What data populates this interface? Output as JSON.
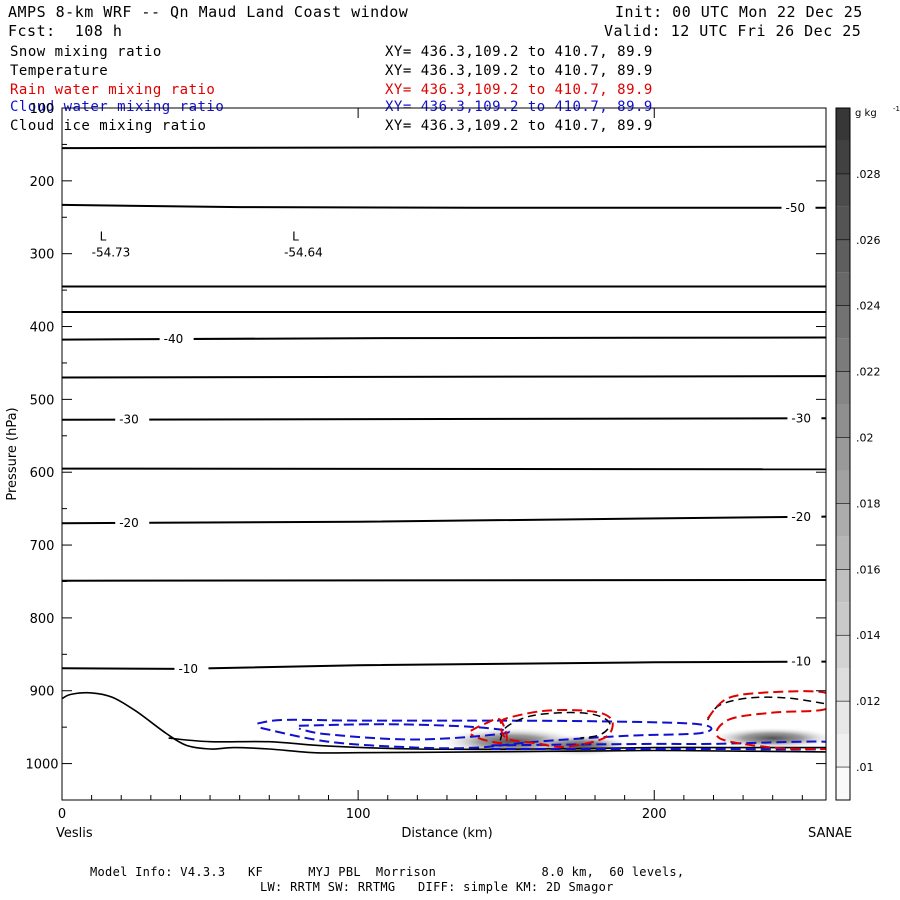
{
  "header": {
    "title": "AMPS 8-km WRF -- Qn Maud Land Coast window",
    "init": "Init: 00 UTC Mon 22 Dec 25",
    "fcst": "Fcst:  108 h",
    "valid": "Valid: 12 UTC Fri 26 Dec 25"
  },
  "fields": [
    {
      "name": "Snow mixing ratio",
      "xy": "XY= 436.3,109.2 to 410.7, 89.9",
      "color": "#000000"
    },
    {
      "name": "Temperature",
      "xy": "XY= 436.3,109.2 to 410.7, 89.9",
      "color": "#000000"
    },
    {
      "name": "Rain water mixing ratio",
      "xy": "XY= 436.3,109.2 to 410.7, 89.9",
      "color": "#e00000"
    },
    {
      "name": "Cloud water mixing ratio",
      "xy": "XY= 436.3,109.2 to 410.7, 89.9",
      "color": "#1010d0"
    },
    {
      "name": "Cloud ice mixing ratio",
      "xy": "XY= 436.3,109.2 to 410.7, 89.9",
      "color": "#000000"
    }
  ],
  "footer": {
    "line1": "Model Info: V4.3.3   KF      MYJ PBL  Morrison              8.0 km,  60 levels,",
    "line2": "LW: RRTM SW: RRTMG   DIFF: simple KM: 2D Smagor"
  },
  "chart_data": {
    "type": "contour",
    "title": "AMPS 8-km WRF -- Qn Maud Land Coast window",
    "xlabel": "Distance (km)",
    "ylabel": "Pressure (hPa)",
    "xlim": [
      0,
      258
    ],
    "ylim": [
      1050,
      100
    ],
    "x_ticks": [
      0,
      100,
      200
    ],
    "y_ticks": [
      100,
      200,
      300,
      400,
      500,
      600,
      700,
      800,
      900,
      1000
    ],
    "endpoints": {
      "left": "Veslis",
      "right": "SANAE"
    },
    "colorbar": {
      "unit": "g kg",
      "unit_exp": "-1",
      "ticks": [
        ".01",
        ".012",
        ".014",
        ".016",
        ".018",
        ".02",
        ".022",
        ".024",
        ".026",
        ".028"
      ],
      "min": 0.009,
      "max": 0.03
    },
    "lows": [
      {
        "label": "L",
        "value": "-54.73",
        "x": 10,
        "p": 290
      },
      {
        "label": "L",
        "value": "-54.64",
        "x": 75,
        "p": 290
      }
    ],
    "isotherms": [
      {
        "points": [
          [
            0,
            155
          ],
          [
            258,
            153
          ]
        ]
      },
      {
        "points": [
          [
            0,
            233
          ],
          [
            60,
            236
          ],
          [
            140,
            237
          ],
          [
            200,
            237
          ],
          [
            258,
            237
          ]
        ],
        "label": "-50",
        "label_x": 245
      },
      {
        "points": [
          [
            0,
            345
          ],
          [
            258,
            345
          ]
        ]
      },
      {
        "points": [
          [
            0,
            380
          ],
          [
            258,
            380
          ]
        ]
      },
      {
        "points": [
          [
            0,
            418
          ],
          [
            100,
            416
          ],
          [
            258,
            415
          ]
        ],
        "label": "-40",
        "label_x": 35
      },
      {
        "points": [
          [
            0,
            470
          ],
          [
            258,
            468
          ]
        ]
      },
      {
        "points": [
          [
            0,
            528
          ],
          [
            258,
            526
          ]
        ],
        "label": "-30",
        "label_x": 20,
        "label2_x": 247
      },
      {
        "points": [
          [
            0,
            595
          ],
          [
            258,
            596
          ]
        ]
      },
      {
        "points": [
          [
            0,
            670
          ],
          [
            100,
            668
          ],
          [
            258,
            661
          ]
        ],
        "label": "-20",
        "label_x": 20,
        "label2_x": 247
      },
      {
        "points": [
          [
            0,
            749
          ],
          [
            258,
            748
          ]
        ]
      },
      {
        "points": [
          [
            0,
            869
          ],
          [
            40,
            870
          ],
          [
            100,
            865
          ],
          [
            200,
            861
          ],
          [
            258,
            860
          ]
        ],
        "label": "-10",
        "label_x": 40,
        "label2_x": 247
      }
    ],
    "terrain": [
      [
        0,
        911
      ],
      [
        3,
        905
      ],
      [
        10,
        903
      ],
      [
        17,
        909
      ],
      [
        25,
        928
      ],
      [
        35,
        958
      ],
      [
        42,
        975
      ],
      [
        50,
        980
      ],
      [
        58,
        978
      ],
      [
        70,
        980
      ],
      [
        85,
        985
      ],
      [
        100,
        985
      ],
      [
        140,
        984
      ],
      [
        170,
        983
      ],
      [
        200,
        982
      ],
      [
        230,
        983
      ],
      [
        258,
        984
      ]
    ],
    "terrain_lower": [
      [
        36,
        965
      ],
      [
        50,
        970
      ],
      [
        70,
        970
      ],
      [
        90,
        976
      ],
      [
        120,
        980
      ],
      [
        160,
        980
      ],
      [
        200,
        978
      ],
      [
        230,
        978
      ],
      [
        258,
        978
      ]
    ],
    "shading": [
      {
        "x": 152,
        "p": 970,
        "rx": 25,
        "rp": 20,
        "max": 0.029
      },
      {
        "x": 175,
        "p": 975,
        "rx": 18,
        "rp": 15,
        "max": 0.027
      },
      {
        "x": 240,
        "p": 965,
        "rx": 22,
        "rp": 15,
        "max": 0.029
      }
    ],
    "cloud_water": [
      {
        "points": [
          [
            66,
            945
          ],
          [
            75,
            940
          ],
          [
            100,
            941
          ],
          [
            140,
            941
          ],
          [
            180,
            942
          ],
          [
            215,
            946
          ],
          [
            216,
            958
          ],
          [
            190,
            962
          ],
          [
            160,
            970
          ],
          [
            140,
            978
          ],
          [
            120,
            978
          ],
          [
            90,
            970
          ],
          [
            66,
            950
          ]
        ]
      },
      {
        "points": [
          [
            80,
            948
          ],
          [
            110,
            946
          ],
          [
            140,
            950
          ],
          [
            150,
            958
          ],
          [
            120,
            967
          ],
          [
            90,
            960
          ],
          [
            80,
            952
          ]
        ]
      },
      {
        "points": [
          [
            145,
            975
          ],
          [
            170,
            974
          ],
          [
            200,
            973
          ],
          [
            220,
            973
          ],
          [
            258,
            970
          ],
          [
            258,
            980
          ],
          [
            220,
            980
          ],
          [
            180,
            980
          ],
          [
            145,
            980
          ]
        ]
      }
    ],
    "rain_water": [
      {
        "points": [
          [
            148,
            945
          ],
          [
            150,
            938
          ],
          [
            162,
            928
          ],
          [
            175,
            927
          ],
          [
            183,
            932
          ],
          [
            186,
            945
          ],
          [
            183,
            965
          ],
          [
            170,
            977
          ],
          [
            160,
            972
          ],
          [
            150,
            965
          ],
          [
            148,
            945
          ]
        ]
      },
      {
        "points": [
          [
            138,
            955
          ],
          [
            143,
            945
          ],
          [
            148,
            940
          ],
          [
            150,
            970
          ],
          [
            143,
            968
          ],
          [
            138,
            960
          ]
        ]
      },
      {
        "points": [
          [
            218,
            938
          ],
          [
            225,
            910
          ],
          [
            240,
            902
          ],
          [
            258,
            903
          ],
          [
            258,
            925
          ],
          [
            240,
            930
          ],
          [
            225,
            940
          ],
          [
            222,
            965
          ],
          [
            240,
            978
          ],
          [
            258,
            980
          ]
        ]
      }
    ],
    "snow": [
      {
        "points": [
          [
            148,
            968
          ],
          [
            150,
            950
          ],
          [
            158,
            935
          ],
          [
            170,
            930
          ],
          [
            180,
            933
          ],
          [
            185,
            945
          ],
          [
            182,
            960
          ],
          [
            175,
            965
          ]
        ]
      },
      {
        "points": [
          [
            218,
            940
          ],
          [
            222,
            920
          ],
          [
            232,
            910
          ],
          [
            245,
            910
          ],
          [
            258,
            918
          ]
        ]
      }
    ]
  }
}
